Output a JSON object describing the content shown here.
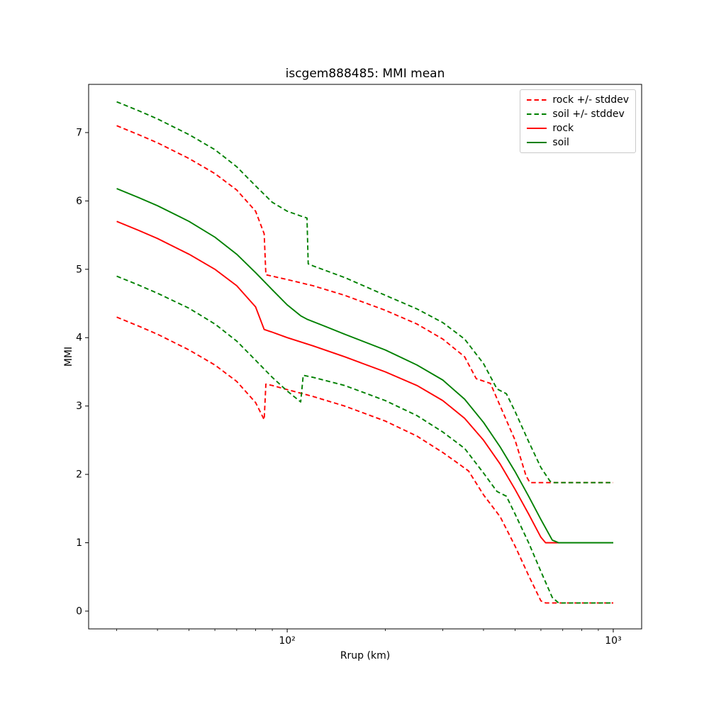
{
  "figure": {
    "title": "iscgem888485: MMI mean",
    "xlabel": "Rrup (km)",
    "ylabel": "MMI"
  },
  "chart_data": {
    "type": "line",
    "title": "iscgem888485: MMI mean",
    "xlabel": "Rrup (km)",
    "ylabel": "MMI",
    "x_scale": "log",
    "y_scale": "linear",
    "xlim": [
      24.6,
      1222
    ],
    "ylim": [
      -0.26,
      7.705
    ],
    "grid": false,
    "legend_position": "upper right",
    "x_ticks_major": [
      100,
      1000
    ],
    "x_tick_labels": [
      "10²",
      "10³"
    ],
    "x_ticks_minor": [
      30,
      40,
      50,
      60,
      70,
      80,
      90,
      200,
      300,
      400,
      500,
      600,
      700,
      800,
      900
    ],
    "y_ticks": [
      0,
      1,
      2,
      3,
      4,
      5,
      6,
      7
    ],
    "colors": {
      "rock": "#ff0000",
      "soil": "#008000"
    },
    "series": [
      {
        "id": "rock-plus-stddev",
        "name": "rock +/- stddev",
        "color": "#ff0000",
        "style": "dashed",
        "legend": true,
        "x": [
          30,
          35,
          40,
          50,
          60,
          70,
          80,
          85,
          86,
          90,
          100,
          120,
          150,
          200,
          250,
          300,
          350,
          380,
          420,
          450,
          500,
          540,
          555,
          700,
          1000
        ],
        "y": [
          7.1,
          6.97,
          6.85,
          6.62,
          6.4,
          6.16,
          5.85,
          5.52,
          4.92,
          4.9,
          4.85,
          4.76,
          4.62,
          4.4,
          4.2,
          3.98,
          3.72,
          3.4,
          3.33,
          3.0,
          2.5,
          1.98,
          1.88,
          1.88,
          1.88
        ]
      },
      {
        "id": "rock-minus-stddev",
        "name": "rock +/- stddev",
        "color": "#ff0000",
        "style": "dashed",
        "legend": false,
        "x": [
          30,
          35,
          40,
          50,
          60,
          70,
          80,
          85,
          86,
          90,
          100,
          120,
          150,
          200,
          250,
          300,
          330,
          360,
          400,
          450,
          500,
          550,
          600,
          620,
          700,
          1000
        ],
        "y": [
          4.3,
          4.17,
          4.05,
          3.82,
          3.6,
          3.36,
          3.05,
          2.8,
          3.32,
          3.3,
          3.24,
          3.14,
          3.0,
          2.78,
          2.56,
          2.32,
          2.18,
          2.05,
          1.7,
          1.38,
          0.95,
          0.52,
          0.15,
          0.12,
          0.12,
          0.12
        ]
      },
      {
        "id": "soil-plus-stddev",
        "name": "soil +/- stddev",
        "color": "#008000",
        "style": "dashed",
        "legend": true,
        "x": [
          30,
          35,
          40,
          50,
          60,
          70,
          80,
          90,
          100,
          110,
          115,
          116,
          120,
          150,
          200,
          250,
          300,
          350,
          400,
          440,
          470,
          500,
          550,
          600,
          640,
          660,
          800,
          1000
        ],
        "y": [
          7.45,
          7.32,
          7.2,
          6.97,
          6.75,
          6.5,
          6.22,
          5.98,
          5.85,
          5.78,
          5.75,
          5.08,
          5.05,
          4.88,
          4.62,
          4.42,
          4.22,
          3.98,
          3.62,
          3.25,
          3.18,
          2.92,
          2.48,
          2.1,
          1.9,
          1.88,
          1.88,
          1.88
        ]
      },
      {
        "id": "soil-minus-stddev",
        "name": "soil +/- stddev",
        "color": "#008000",
        "style": "dashed",
        "legend": false,
        "x": [
          30,
          35,
          40,
          50,
          60,
          70,
          80,
          90,
          100,
          110,
          112,
          120,
          150,
          200,
          250,
          300,
          350,
          400,
          440,
          470,
          500,
          550,
          600,
          650,
          680,
          800,
          1000
        ],
        "y": [
          4.9,
          4.77,
          4.65,
          4.43,
          4.2,
          3.95,
          3.67,
          3.42,
          3.22,
          3.06,
          3.45,
          3.42,
          3.3,
          3.08,
          2.86,
          2.62,
          2.38,
          2.02,
          1.75,
          1.68,
          1.42,
          1.0,
          0.58,
          0.2,
          0.12,
          0.12,
          0.12
        ]
      },
      {
        "id": "rock-mean",
        "name": "rock",
        "color": "#ff0000",
        "style": "solid",
        "legend": true,
        "x": [
          30,
          35,
          40,
          50,
          60,
          70,
          80,
          85,
          90,
          100,
          120,
          150,
          200,
          250,
          300,
          350,
          400,
          450,
          500,
          550,
          600,
          620,
          700,
          800,
          1000
        ],
        "y": [
          5.7,
          5.57,
          5.45,
          5.22,
          5.0,
          4.76,
          4.45,
          4.12,
          4.08,
          4.0,
          3.88,
          3.72,
          3.5,
          3.3,
          3.08,
          2.82,
          2.5,
          2.15,
          1.78,
          1.42,
          1.08,
          1.0,
          1.0,
          1.0,
          1.0
        ]
      },
      {
        "id": "soil-mean",
        "name": "soil",
        "color": "#008000",
        "style": "solid",
        "legend": true,
        "x": [
          30,
          35,
          40,
          50,
          60,
          70,
          80,
          90,
          100,
          110,
          115,
          130,
          150,
          200,
          250,
          300,
          350,
          400,
          450,
          500,
          550,
          600,
          650,
          680,
          800,
          1000
        ],
        "y": [
          6.18,
          6.05,
          5.93,
          5.7,
          5.47,
          5.22,
          4.95,
          4.7,
          4.48,
          4.32,
          4.27,
          4.17,
          4.05,
          3.82,
          3.6,
          3.38,
          3.1,
          2.76,
          2.4,
          2.04,
          1.68,
          1.34,
          1.04,
          1.0,
          1.0,
          1.0
        ]
      }
    ],
    "legend_order": [
      "rock",
      "soil",
      "rock +/- stddev",
      "soil +/- stddev"
    ]
  }
}
